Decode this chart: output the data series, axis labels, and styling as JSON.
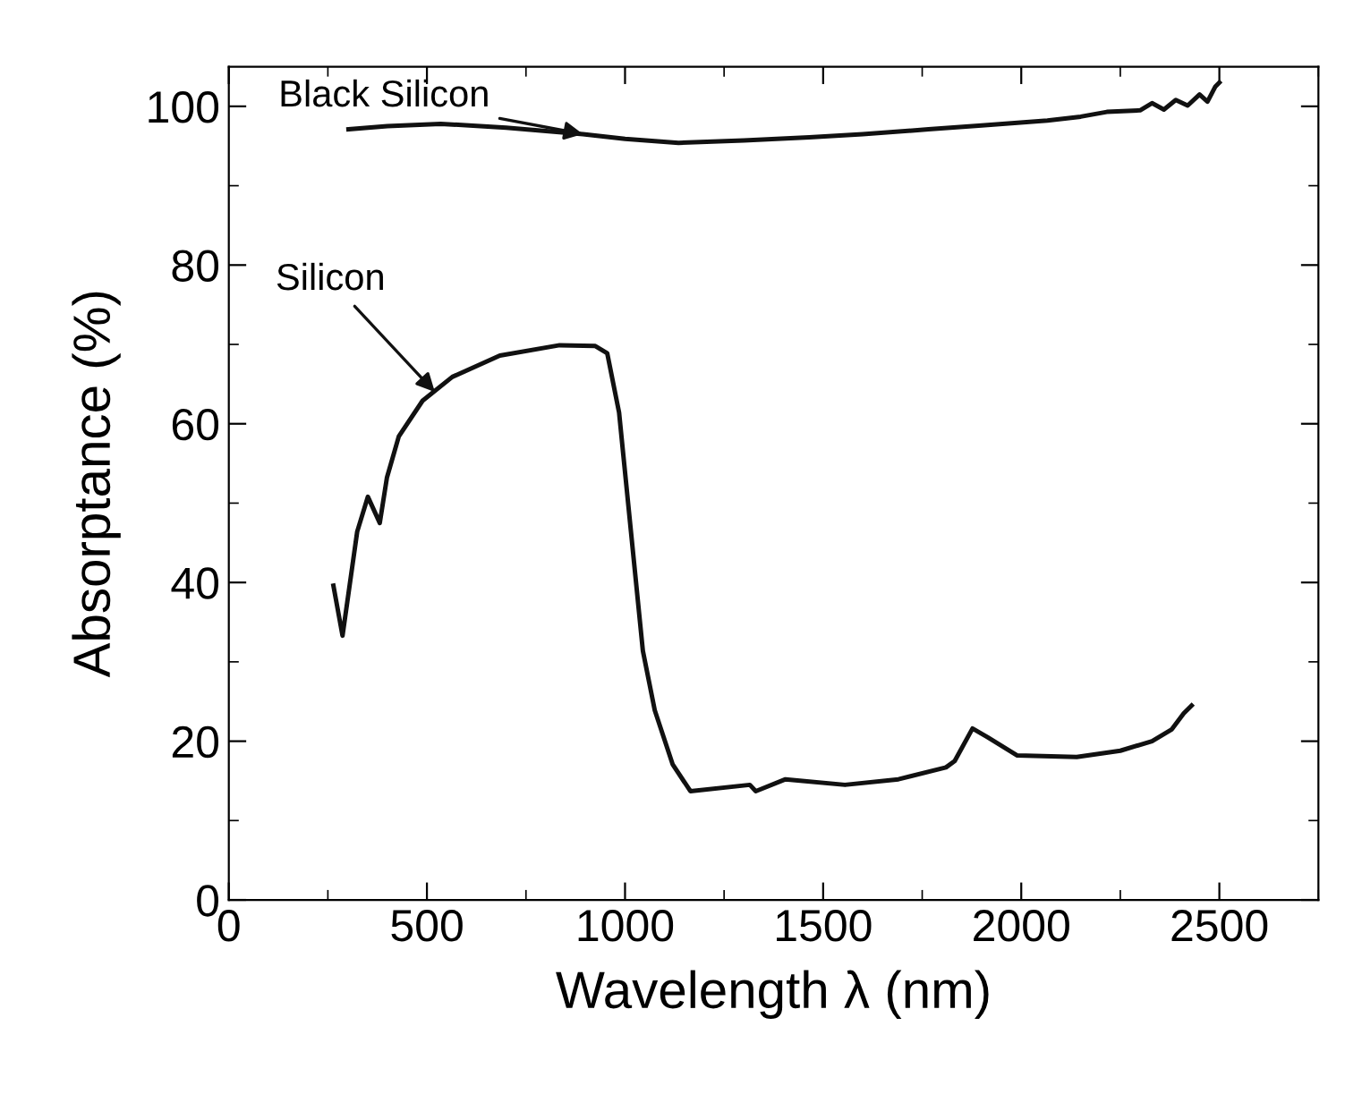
{
  "chart_data": {
    "type": "line",
    "xlabel": "Wavelength λ (nm)",
    "ylabel": "Absorptance (%)",
    "xlim": [
      0,
      2750
    ],
    "ylim": [
      0,
      105
    ],
    "xticks": [
      0,
      500,
      1000,
      1500,
      2000,
      2500
    ],
    "yticks": [
      0,
      20,
      40,
      60,
      80,
      100
    ],
    "grid": false,
    "marker": "none",
    "line_style": "solid",
    "series": [
      {
        "color": "#111111",
        "x": [
          302,
          400,
          535,
          700,
          894,
          1000,
          1135,
          1300,
          1465,
          1600,
          1766,
          1900,
          2066,
          2150,
          2216,
          2300,
          2330,
          2360,
          2390,
          2420,
          2450,
          2470,
          2490,
          2500
        ],
        "values": [
          97.1,
          97.5,
          97.8,
          97.3,
          96.5,
          95.9,
          95.4,
          95.7,
          96.1,
          96.5,
          97.1,
          97.6,
          98.2,
          98.7,
          99.3,
          99.5,
          100.4,
          99.6,
          100.8,
          100.1,
          101.5,
          100.6,
          102.5,
          103
        ]
      },
      {
        "color": "#111111",
        "x": [
          264,
          287,
          324,
          351,
          381,
          399,
          429,
          489,
          564,
          684,
          835,
          925,
          955,
          985,
          1015,
          1045,
          1075,
          1120,
          1165,
          1315,
          1330,
          1405,
          1555,
          1690,
          1810,
          1832,
          1877,
          1915,
          1990,
          2140,
          2250,
          2330,
          2380,
          2410,
          2430
        ],
        "values": [
          39.6,
          33.3,
          46.4,
          50.8,
          47.5,
          53.2,
          58.4,
          62.9,
          65.9,
          68.6,
          69.9,
          69.8,
          68.9,
          61.4,
          46.4,
          31.4,
          23.9,
          17.1,
          13.7,
          14.5,
          13.7,
          15.2,
          14.5,
          15.2,
          16.7,
          17.5,
          21.6,
          20.5,
          18.2,
          18.0,
          18.8,
          20.0,
          21.5,
          23.5,
          24.5
        ]
      }
    ],
    "annotations": [
      {
        "text": "Black Silicon",
        "x": 894,
        "y": 96.5
      },
      {
        "text": "Silicon",
        "x": 520,
        "y": 64
      }
    ]
  }
}
